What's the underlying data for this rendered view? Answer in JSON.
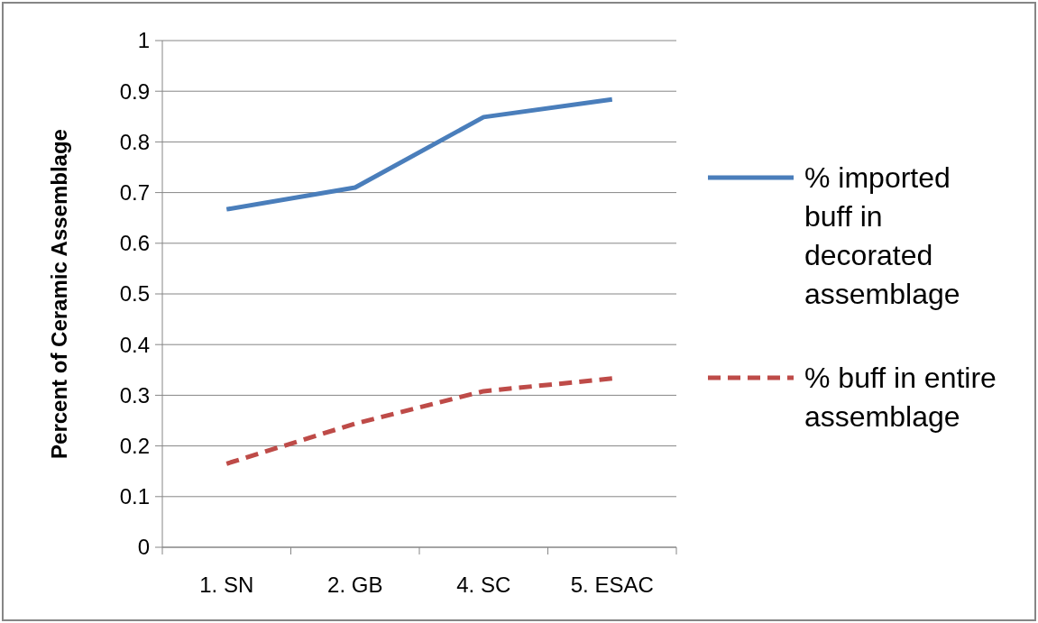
{
  "chart_data": {
    "type": "line",
    "ylabel": "Percent of Ceramic Assemblage",
    "categories": [
      "1. SN",
      "2. GB",
      "4. SC",
      "5. ESAC"
    ],
    "series": [
      {
        "name": "% imported buff in decorated assemblage",
        "color": "#4a7ebb",
        "values": [
          0.667,
          0.71,
          0.849,
          0.884
        ],
        "line_style": "solid"
      },
      {
        "name": "% buff in entire assemblage",
        "color": "#be4b48",
        "values": [
          0.165,
          0.244,
          0.308,
          0.333
        ],
        "line_style": "dashed"
      }
    ],
    "ylim": [
      0,
      1
    ],
    "yticks": [
      0,
      0.1,
      0.2,
      0.3,
      0.4,
      0.5,
      0.6,
      0.7,
      0.8,
      0.9,
      1
    ],
    "grid": "y",
    "legend": "right",
    "marker": "none"
  }
}
